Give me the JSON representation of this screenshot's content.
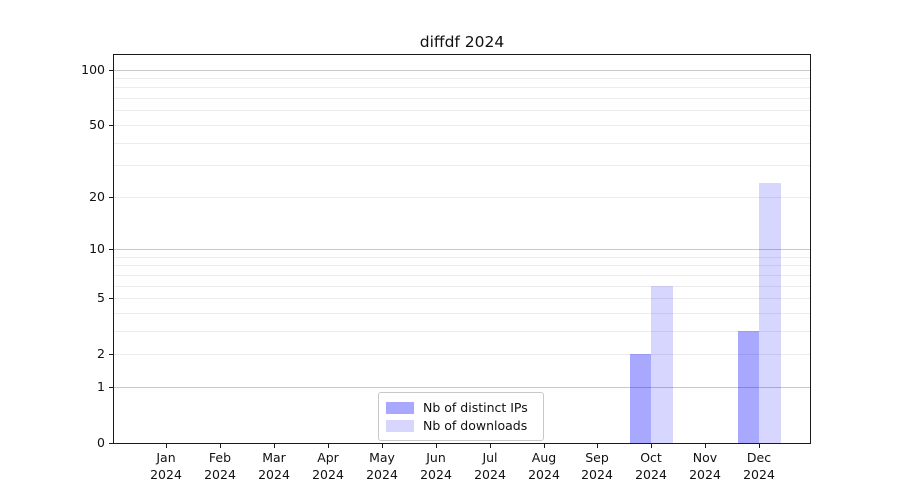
{
  "title": "diffdf 2024",
  "legend": {
    "items": [
      {
        "label": "Nb of distinct IPs",
        "color": "rgba(0,0,255,0.34)"
      },
      {
        "label": "Nb of downloads",
        "color": "rgba(0,0,255,0.16)"
      }
    ]
  },
  "axes": {
    "ytick_labels": [
      "0",
      "1",
      "2",
      "5",
      "10",
      "20",
      "50",
      "100"
    ],
    "xtick_month_labels": [
      "Jan",
      "Feb",
      "Mar",
      "Apr",
      "May",
      "Jun",
      "Jul",
      "Aug",
      "Sep",
      "Oct",
      "Nov",
      "Dec"
    ],
    "xtick_year_label": "2024"
  },
  "chart_data": {
    "type": "bar",
    "title": "diffdf 2024",
    "categories": [
      "Jan 2024",
      "Feb 2024",
      "Mar 2024",
      "Apr 2024",
      "May 2024",
      "Jun 2024",
      "Jul 2024",
      "Aug 2024",
      "Sep 2024",
      "Oct 2024",
      "Nov 2024",
      "Dec 2024"
    ],
    "series": [
      {
        "name": "Nb of distinct IPs",
        "color": "rgba(0,0,255,0.34)",
        "solid_color_hex": "#a8a8f8",
        "values": [
          0,
          0,
          0,
          0,
          0,
          0,
          0,
          0,
          0,
          2,
          0,
          3
        ]
      },
      {
        "name": "Nb of downloads",
        "color": "rgba(0,0,255,0.16)",
        "solid_color_hex": "#d9dbf8",
        "values": [
          0,
          0,
          0,
          0,
          0,
          0,
          0,
          0,
          0,
          6,
          0,
          24
        ]
      }
    ],
    "xlabel": "",
    "ylabel": "",
    "yscale": "log1p",
    "yticks": [
      0,
      1,
      2,
      5,
      10,
      20,
      50,
      100
    ],
    "ylim": [
      0,
      120
    ],
    "grid": "horizontal",
    "grid_major_at": [
      1,
      10,
      100
    ],
    "grid_minor_at": [
      2,
      3,
      4,
      5,
      6,
      7,
      8,
      9,
      20,
      30,
      40,
      50,
      60,
      70,
      80,
      90
    ],
    "legend_position": "lower center inside axes"
  }
}
